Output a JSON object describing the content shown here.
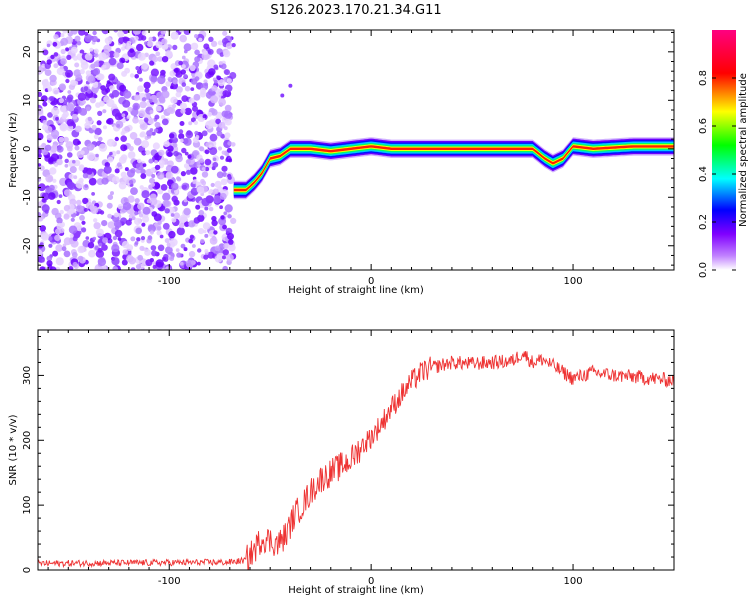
{
  "title": "S126.2023.170.21.34.G11",
  "chart_data": [
    {
      "type": "heatmap",
      "xlabel": "Height of straight line (km)",
      "ylabel": "Frequency (Hz)",
      "xlim": [
        -165,
        150
      ],
      "ylim": [
        -25,
        24.5
      ],
      "x_ticks": [
        -100,
        0,
        100
      ],
      "y_ticks": [
        -20,
        -10,
        0,
        10,
        20
      ],
      "colorbar": {
        "label": "Normalized spectral amplitude",
        "range": [
          0,
          1
        ],
        "ticks": [
          0.0,
          0.2,
          0.4,
          0.6,
          0.8
        ],
        "colormap": [
          "#ffffff",
          "#8000ff",
          "#0000ff",
          "#00ffff",
          "#00ff00",
          "#ffff00",
          "#ff0000",
          "#ff0080"
        ]
      },
      "noise_region_x": [
        -165,
        -68
      ],
      "ridge": {
        "x": [
          -68,
          -62,
          -58,
          -54,
          -50,
          -45,
          -40,
          -35,
          -30,
          -20,
          -10,
          0,
          10,
          20,
          40,
          60,
          80,
          86,
          90,
          95,
          100,
          110,
          130,
          150
        ],
        "frequency": [
          -8.5,
          -8.5,
          -7,
          -5,
          -2,
          -1.5,
          0,
          0,
          0,
          -0.5,
          0,
          0.5,
          0,
          0,
          0,
          0,
          0,
          -2,
          -3,
          -2,
          0.5,
          0,
          0.5,
          0.5
        ]
      }
    },
    {
      "type": "line",
      "xlabel": "Height of straight line (km)",
      "ylabel": "SNR (10 * v/v)",
      "xlim": [
        -165,
        150
      ],
      "ylim": [
        0,
        370
      ],
      "x_ticks": [
        -100,
        0,
        100
      ],
      "y_ticks": [
        0,
        100,
        200,
        300
      ],
      "color": "#ee3333",
      "series": [
        {
          "x": [
            -165,
            -70,
            -62,
            -58,
            -54,
            -50,
            -46,
            -42,
            -38,
            -34,
            -30,
            -25,
            -20,
            -15,
            -10,
            -5,
            0,
            5,
            10,
            15,
            20,
            25,
            30,
            40,
            50,
            60,
            70,
            75,
            80,
            85,
            90,
            95,
            100,
            105,
            110,
            120,
            130,
            140,
            150
          ],
          "values": [
            10,
            12,
            15,
            30,
            50,
            45,
            40,
            55,
            85,
            100,
            120,
            140,
            150,
            160,
            170,
            190,
            205,
            225,
            250,
            270,
            290,
            305,
            312,
            320,
            318,
            320,
            322,
            335,
            320,
            325,
            315,
            305,
            295,
            300,
            305,
            300,
            298,
            295,
            292
          ]
        }
      ]
    }
  ]
}
